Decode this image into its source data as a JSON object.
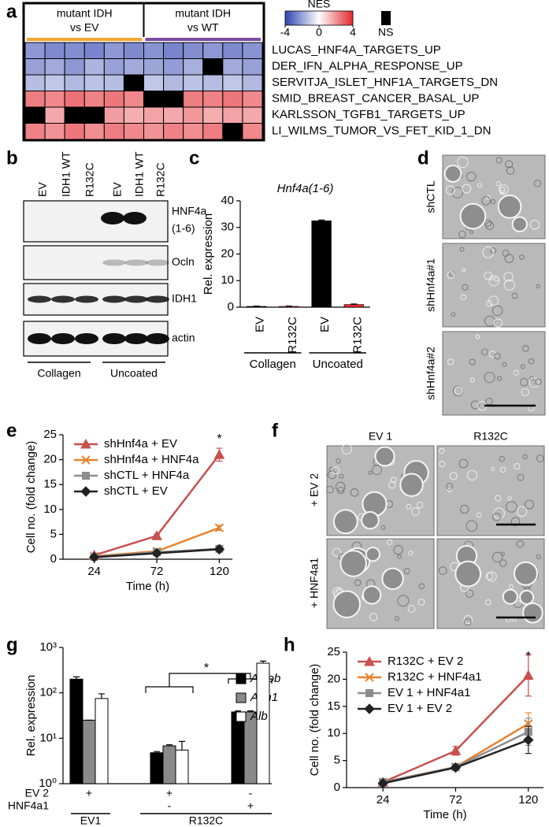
{
  "panel_labels": [
    "a",
    "b",
    "c",
    "d",
    "e",
    "f",
    "g",
    "h"
  ],
  "heatmap": {
    "column_groups": [
      {
        "lines": [
          "mutant IDH",
          "vs EV"
        ],
        "color": "#f0a830"
      },
      {
        "lines": [
          "mutant IDH",
          "vs WT"
        ],
        "color": "#7b4aa0"
      }
    ],
    "legend_title": "NES",
    "scale_ticks": [
      -4,
      0,
      4
    ],
    "ns_label": "NS",
    "rows": [
      {
        "name": "LUCAS_HNF4A_TARGETS_UP",
        "color": "#e8272b",
        "values": [
          -2.2,
          -2.5,
          -2.4,
          -2.6,
          -2.2,
          -2.5,
          -2.3,
          -2.6,
          -2.4,
          -2.2,
          -2.5,
          -2.3
        ]
      },
      {
        "name": "DER_IFN_ALPHA_RESPONSE_UP",
        "color": "#000000",
        "values": [
          -2.0,
          -1.8,
          -2.2,
          -1.6,
          -2.0,
          -1.8,
          -1.9,
          -2.1,
          -1.7,
          null,
          -1.8,
          -2.0
        ]
      },
      {
        "name": "SERVITJA_ISLET_HNF1A_TARGETS_DN",
        "color": "#000000",
        "values": [
          -1.4,
          -1.2,
          -1.5,
          -1.3,
          -1.4,
          null,
          -1.2,
          -1.5,
          -1.3,
          -1.4,
          -1.2,
          -1.5
        ]
      },
      {
        "name": "SMID_BREAST_CANCER_BASAL_UP",
        "color": "#000000",
        "values": [
          2.4,
          2.2,
          2.6,
          2.3,
          2.5,
          2.2,
          null,
          null,
          2.4,
          2.3,
          2.5,
          2.2
        ]
      },
      {
        "name": "KARLSSON_TGFB1_TARGETS_UP",
        "color": "#000000",
        "values": [
          null,
          1.6,
          null,
          null,
          1.8,
          1.5,
          1.7,
          1.6,
          1.9,
          1.5,
          1.7,
          1.6
        ]
      },
      {
        "name": "LI_WILMS_TUMOR_VS_FET_KID_1_DN",
        "color": "#000000",
        "values": [
          2.3,
          2.0,
          2.5,
          2.1,
          2.4,
          2.2,
          2.0,
          2.3,
          2.1,
          2.4,
          null,
          2.2
        ]
      }
    ]
  },
  "blot": {
    "lanes": [
      "EV",
      "IDH1 WT",
      "R132C",
      "EV",
      "IDH1 WT",
      "R132C"
    ],
    "lane_colors": [
      "#000000",
      "#000000",
      "#e8272b",
      "#000000",
      "#000000",
      "#e8272b"
    ],
    "rows": [
      [
        "HNF4a",
        "(1-6)"
      ],
      [
        "Ocln"
      ],
      [
        "IDH1"
      ],
      [
        "actin"
      ]
    ],
    "groups": [
      "Collagen",
      "Uncoated"
    ]
  },
  "micrographs_d": [
    "shCTL",
    "shHnf4a#1",
    "shHnf4a#2"
  ],
  "micrographs_f": {
    "columns": [
      "EV 1",
      "R132C"
    ],
    "rows": [
      "+ EV 2",
      "+ HNF4a1"
    ]
  },
  "chart_data": [
    {
      "type": "bar",
      "title": "Hnf4a(1-6)",
      "y_label": "Rel. expression",
      "categories": [
        "EV",
        "R132C",
        "EV",
        "R132C"
      ],
      "category_colors": [
        "#000000",
        "#e8272b",
        "#000000",
        "#e8272b"
      ],
      "values": [
        0.3,
        0.3,
        32.5,
        1.0
      ],
      "errors": [
        0.1,
        0.1,
        0.3,
        0.2
      ],
      "colors": [
        "#000000",
        "#e8272b",
        "#000000",
        "#e8272b"
      ],
      "group_labels": [
        "Collagen",
        "Uncoated"
      ],
      "ylim": [
        0,
        40
      ],
      "yticks": [
        0,
        10,
        20,
        30,
        40
      ]
    },
    {
      "type": "line",
      "x_label": "Time (h)",
      "y_label": "Cell no. (fold change)",
      "x": [
        24,
        72,
        120
      ],
      "xlim": [
        0,
        130
      ],
      "xticks": [
        24,
        72,
        120
      ],
      "ylim": [
        0,
        25
      ],
      "yticks": [
        0,
        5,
        10,
        15,
        20,
        25
      ],
      "annotation": "*",
      "series": [
        {
          "name": "shHnf4a + EV",
          "color": "#c8504f",
          "marker": "triangle",
          "values": [
            0.8,
            4.7,
            21.0
          ],
          "errors": [
            0.3,
            0.3,
            1.3
          ]
        },
        {
          "name": "shHnf4a + HNF4a",
          "color": "#e8812e",
          "marker": "x",
          "values": [
            0.6,
            1.6,
            6.3
          ],
          "errors": [
            0.2,
            0.3,
            0.5
          ]
        },
        {
          "name": "shCTL + HNF4a",
          "color": "#8c8c8c",
          "marker": "square",
          "values": [
            0.5,
            1.4,
            2.1
          ],
          "errors": [
            0.2,
            0.2,
            0.3
          ]
        },
        {
          "name": "shCTL + EV",
          "color": "#222222",
          "marker": "diamond",
          "values": [
            0.4,
            1.2,
            2.0
          ],
          "errors": [
            0.2,
            0.2,
            0.3
          ]
        }
      ]
    },
    {
      "type": "log_bar",
      "y_label": "Rel. expression",
      "log_scale": true,
      "ylim": [
        1,
        1000
      ],
      "yticks": [
        {
          "value": 1,
          "label": "10⁰"
        },
        {
          "value": 10,
          "label": "10¹"
        },
        {
          "value": 100,
          "label": "10²"
        },
        {
          "value": 1000,
          "label": "10³"
        }
      ],
      "series": [
        {
          "name": "Aldob",
          "color": "#000000",
          "values": [
            200,
            4.8,
            38
          ],
          "errors": [
            25,
            0.3,
            2
          ]
        },
        {
          "name": "Adh1",
          "color": "#8a8a8a",
          "values": [
            25,
            6.8,
            38
          ],
          "errors": [
            0,
            0.4,
            2
          ]
        },
        {
          "name": "Alb",
          "color": "#ffffff",
          "values": [
            75,
            5.5,
            450
          ],
          "errors": [
            20,
            3,
            50
          ]
        }
      ],
      "conditions": [
        {
          "label": "EV 2",
          "values": [
            "+",
            "+",
            "-"
          ]
        },
        {
          "label": "HNF4a1",
          "values": [
            null,
            "-",
            "+"
          ]
        }
      ],
      "group_labels": [
        "EV1",
        "R132C"
      ],
      "group_colors": [
        "#000000",
        "#e8272b"
      ],
      "annotation": "*"
    },
    {
      "type": "line",
      "x_label": "Time (h)",
      "y_label": "Cell no. (fold change)",
      "x": [
        24,
        72,
        120
      ],
      "xlim": [
        0,
        130
      ],
      "xticks": [
        24,
        72,
        120
      ],
      "ylim": [
        0,
        25
      ],
      "yticks": [
        0,
        5,
        10,
        15,
        20,
        25
      ],
      "annotation": "*",
      "series": [
        {
          "name": "R132C + EV 2",
          "color": "#c8504f",
          "marker": "triangle",
          "values": [
            1.0,
            6.8,
            20.7
          ],
          "errors": [
            0.5,
            0.8,
            3.8
          ]
        },
        {
          "name": "R132C + HNF4a1",
          "color": "#e8812e",
          "marker": "x",
          "values": [
            1.0,
            3.8,
            11.8
          ],
          "errors": [
            0.3,
            0.4,
            2.0
          ]
        },
        {
          "name": "EV 1 + HNF4a1",
          "color": "#8c8c8c",
          "marker": "square",
          "values": [
            1.0,
            3.8,
            10.3
          ],
          "errors": [
            0.3,
            0.4,
            2.5
          ]
        },
        {
          "name": "EV 1 + EV 2",
          "color": "#222222",
          "marker": "diamond",
          "values": [
            0.8,
            3.7,
            8.8
          ],
          "errors": [
            0.3,
            0.3,
            2.5
          ]
        }
      ]
    }
  ]
}
